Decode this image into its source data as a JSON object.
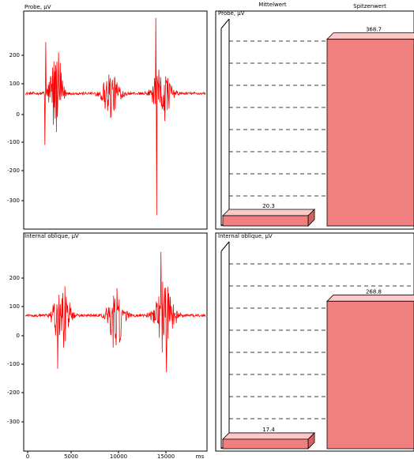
{
  "colors": {
    "signal": "#ff0000",
    "bar_fill": "#f08080",
    "bar_top": "#ffc8c8",
    "bar_side": "#d86060",
    "axis": "#000000",
    "grid": "#000000"
  },
  "chart_data": [
    {
      "type": "line",
      "ylabel": "Probe, µV",
      "y_ticks": [
        200,
        100,
        0,
        -100,
        -200,
        -300
      ],
      "ylim": [
        -395,
        240
      ],
      "x_range": [
        0,
        19000
      ],
      "series": [
        {
          "bursts": [
            {
              "center": 3200,
              "halfwidth": 1000,
              "amp": 155
            },
            {
              "center": 9000,
              "halfwidth": 1300,
              "amp": 85
            },
            {
              "center": 14400,
              "halfwidth": 1300,
              "amp": 100
            }
          ],
          "spikes": [
            {
              "x": 2150,
              "y": 150
            },
            {
              "x": 2050,
              "y": -150
            },
            {
              "x": 13750,
              "y": 220
            },
            {
              "x": 13850,
              "y": -355
            }
          ]
        }
      ]
    },
    {
      "type": "bar",
      "ylabel": "Probe, µV",
      "categories": [
        "Mittelwert",
        "Spitzenwert"
      ],
      "values": [
        20.3,
        368.7
      ],
      "value_labels": [
        "20.3",
        "368.7"
      ],
      "ylim": [
        0,
        390
      ],
      "grid": true,
      "style": "3d"
    },
    {
      "type": "line",
      "ylabel": "Internal oblique, µV",
      "y_ticks": [
        200,
        100,
        0,
        -100,
        -200,
        -300
      ],
      "x_ticks": [
        0,
        5000,
        10000,
        15000
      ],
      "xlabel": "ms",
      "ylim": [
        -395,
        240
      ],
      "x_range": [
        0,
        19000
      ],
      "series": [
        {
          "bursts": [
            {
              "center": 3800,
              "halfwidth": 1200,
              "amp": 115
            },
            {
              "center": 9600,
              "halfwidth": 1200,
              "amp": 115
            },
            {
              "center": 14700,
              "halfwidth": 1400,
              "amp": 140
            }
          ],
          "spikes": [
            {
              "x": 14300,
              "y": 185
            },
            {
              "x": 3400,
              "y": -155
            },
            {
              "x": 14900,
              "y": -165
            }
          ]
        }
      ]
    },
    {
      "type": "bar",
      "ylabel": "Internal oblique, µV",
      "values": [
        17.4,
        268.8
      ],
      "value_labels": [
        "17.4",
        "268.8"
      ],
      "ylim": [
        0,
        360
      ],
      "grid": true,
      "style": "3d"
    }
  ]
}
